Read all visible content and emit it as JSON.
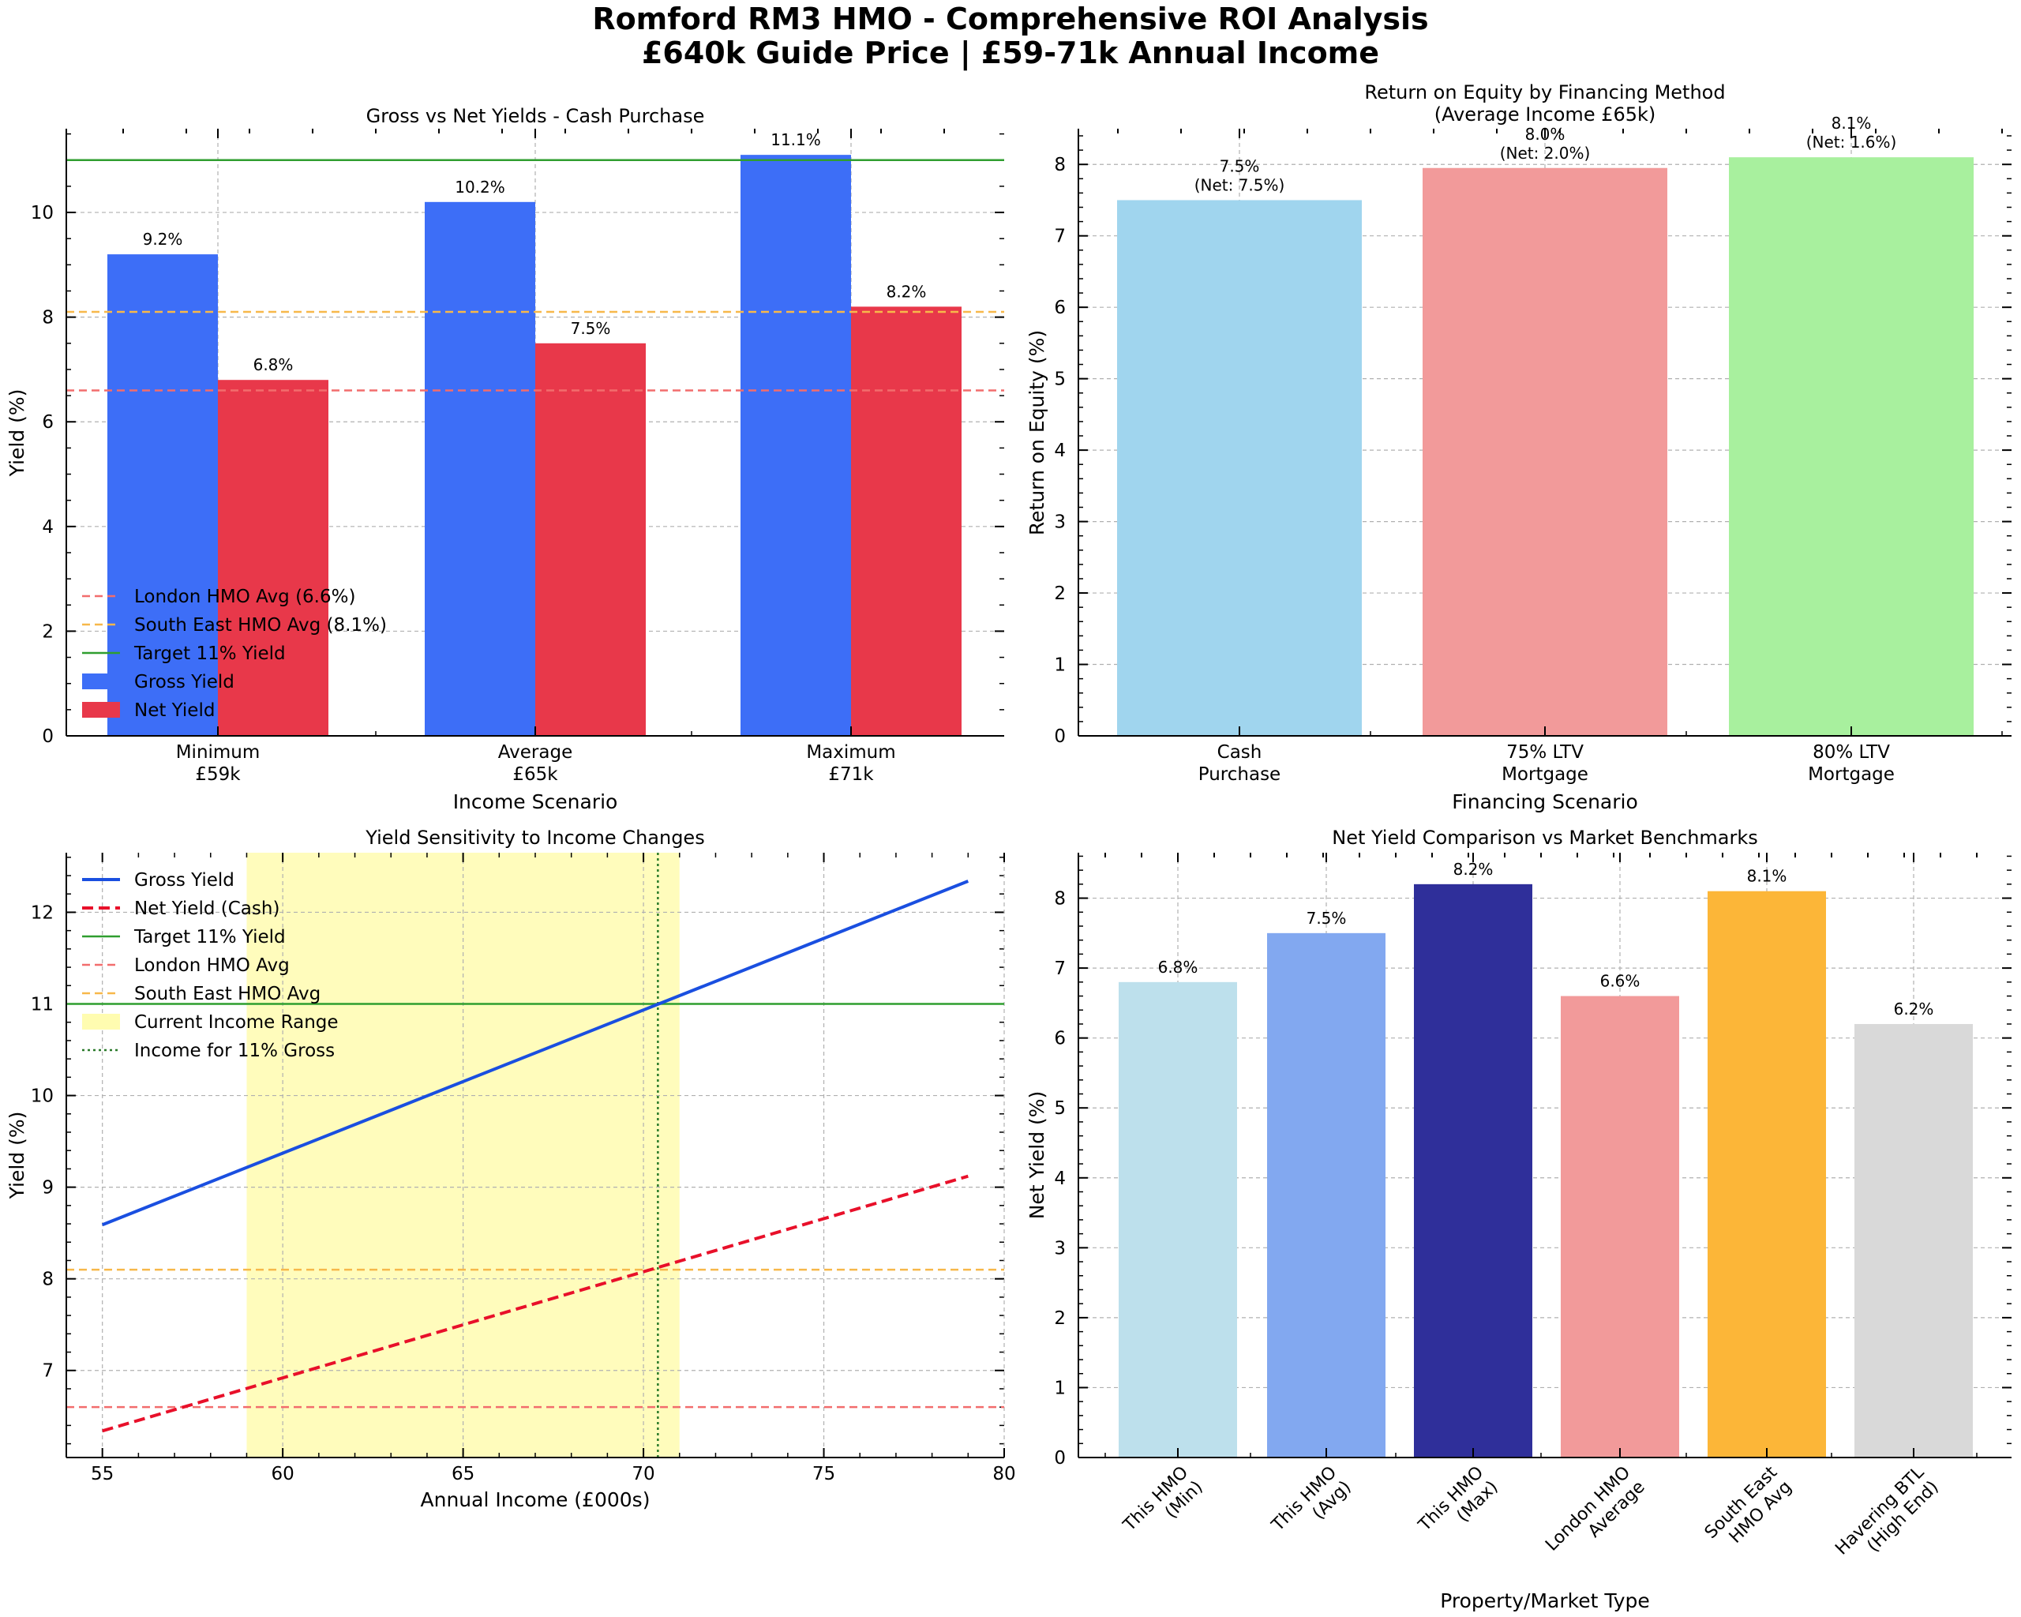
{
  "figure": {
    "title_line1": "Romford RM3 HMO - Comprehensive ROI Analysis",
    "title_line2": "£640k Guide Price | £59-71k Annual Income"
  },
  "chart_data": [
    {
      "type": "bar",
      "title": "Gross vs Net Yields - Cash Purchase",
      "xlabel": "Income Scenario",
      "ylabel": "Yield (%)",
      "ylim": [
        0,
        11.6
      ],
      "yticks": [
        0,
        2,
        4,
        6,
        8,
        10
      ],
      "categories": [
        [
          "Minimum",
          "£59k"
        ],
        [
          "Average",
          "£65k"
        ],
        [
          "Maximum",
          "£71k"
        ]
      ],
      "series": [
        {
          "name": "Gross Yield",
          "color": "#3d6ef7",
          "values": [
            9.2,
            10.2,
            11.1
          ],
          "labels": [
            "9.2%",
            "10.2%",
            "11.1%"
          ]
        },
        {
          "name": "Net Yield",
          "color": "#e8384a",
          "values": [
            6.8,
            7.5,
            8.2
          ],
          "labels": [
            "6.8%",
            "7.5%",
            "8.2%"
          ]
        }
      ],
      "reference_lines": [
        {
          "name": "London HMO Avg (6.6%)",
          "y": 6.6,
          "color": "#f26d6d",
          "style": "dashed"
        },
        {
          "name": "South East HMO Avg (8.1%)",
          "y": 8.1,
          "color": "#f7b84a",
          "style": "dashed"
        },
        {
          "name": "Target 11% Yield",
          "y": 11,
          "color": "#2f9e2f",
          "style": "solid"
        }
      ],
      "legend": "lower-left",
      "grid": true
    },
    {
      "type": "bar",
      "title_line1": "Return on Equity by Financing Method",
      "title_line2": "(Average Income £65k)",
      "xlabel": "Financing Scenario",
      "ylabel": "Return on Equity (%)",
      "ylim": [
        0,
        8.5
      ],
      "yticks": [
        0,
        1,
        2,
        3,
        4,
        5,
        6,
        7,
        8
      ],
      "categories": [
        [
          "Cash",
          "Purchase"
        ],
        [
          "75% LTV",
          "Mortgage"
        ],
        [
          "80% LTV",
          "Mortgage"
        ]
      ],
      "values": [
        7.5,
        7.95,
        8.1
      ],
      "colors": [
        "#a0d5ee",
        "#f29a9a",
        "#a8f09e"
      ],
      "labels": [
        [
          "7.5%",
          "(Net: 7.5%)"
        ],
        [
          "8.0%",
          "(Net: 2.0%)"
        ],
        [
          "8.1%",
          "(Net: 1.6%)"
        ]
      ],
      "grid": true
    },
    {
      "type": "line",
      "title": "Yield Sensitivity to Income Changes",
      "xlabel": "Annual Income (£000s)",
      "ylabel": "Yield (%)",
      "xlim": [
        54,
        80
      ],
      "ylim": [
        6.05,
        12.65
      ],
      "xticks": [
        55,
        60,
        65,
        70,
        75,
        80
      ],
      "yticks": [
        7,
        8,
        9,
        10,
        11,
        12
      ],
      "series": [
        {
          "name": "Gross Yield",
          "color": "#1a4fe0",
          "style": "solid",
          "points": [
            [
              55,
              8.59
            ],
            [
              79,
              12.34
            ]
          ]
        },
        {
          "name": "Net Yield (Cash)",
          "color": "#e8102a",
          "style": "dashed",
          "points": [
            [
              55,
              6.34
            ],
            [
              79,
              9.12
            ]
          ]
        }
      ],
      "reference_lines": [
        {
          "name": "Target 11% Yield",
          "y": 11,
          "color": "#2f9e2f",
          "style": "solid"
        },
        {
          "name": "London HMO Avg",
          "y": 6.6,
          "color": "#f26d6d",
          "style": "dashed"
        },
        {
          "name": "South East HMO Avg",
          "y": 8.1,
          "color": "#f7b84a",
          "style": "dashed"
        }
      ],
      "shaded_range": {
        "name": "Current Income Range",
        "x": [
          59,
          71
        ],
        "color": "#fffcb0"
      },
      "vertical_line": {
        "name": "Income for 11% Gross",
        "x": 70.4,
        "color": "#2a7a2a",
        "style": "dotted"
      },
      "legend": "top-left",
      "grid": true
    },
    {
      "type": "bar",
      "title": "Net Yield Comparison vs Market Benchmarks",
      "xlabel": "Property/Market Type",
      "ylabel": "Net Yield (%)",
      "ylim": [
        0,
        8.65
      ],
      "yticks": [
        0,
        1,
        2,
        3,
        4,
        5,
        6,
        7,
        8
      ],
      "categories": [
        [
          "This HMO",
          "(Min)"
        ],
        [
          "This HMO",
          "(Avg)"
        ],
        [
          "This HMO",
          "(Max)"
        ],
        [
          "London HMO",
          "Average"
        ],
        [
          "South East",
          "HMO Avg"
        ],
        [
          "Havering BTL",
          "(High End)"
        ]
      ],
      "values": [
        6.8,
        7.5,
        8.2,
        6.6,
        8.1,
        6.2
      ],
      "colors": [
        "#bde0ec",
        "#82a8f0",
        "#2f2f9a",
        "#f29a9a",
        "#fcb638",
        "#d9d9d9"
      ],
      "labels": [
        "6.8%",
        "7.5%",
        "8.2%",
        "6.6%",
        "8.1%",
        "6.2%"
      ],
      "grid": true
    }
  ]
}
